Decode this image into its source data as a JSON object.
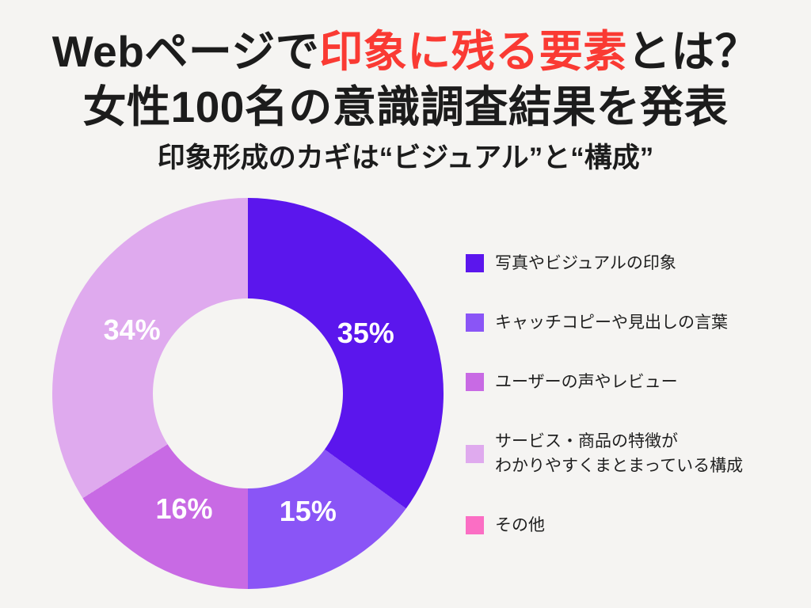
{
  "page": {
    "background": "#f5f4f2"
  },
  "header": {
    "title_line1_prefix": "Webページで",
    "title_line1_highlight": "印象に残る要素",
    "title_line1_suffix": "とは？",
    "title_line2": "女性100名の意識調査結果を発表",
    "subtitle": "印象形成のカギは“ビジュアル”と“構成”",
    "text_color": "#1c1c1c",
    "highlight_color": "#fa3a33"
  },
  "chart_data": {
    "type": "pie",
    "donut": true,
    "hole_ratio": 0.486,
    "hole_color": "#f5f4f2",
    "start_angle_deg": 0,
    "direction": "clockwise",
    "legend_position": "right",
    "unit": "%",
    "categories": [
      "写真やビジュアルの印象",
      "キャッチコピーや見出しの言葉",
      "ユーザーの声やレビュー",
      "サービス・商品の特徴がわかりやすくまとまっている構成",
      "その他"
    ],
    "values": [
      35,
      15,
      16,
      34,
      0
    ],
    "labels": [
      "35%",
      "15%",
      "16%",
      "34%",
      ""
    ],
    "colors": [
      "#5b16ed",
      "#8a55f6",
      "#c86ae4",
      "#dfaaee",
      "#fb6ec4"
    ],
    "label_color": "#ffffff"
  },
  "legend": {
    "items": [
      {
        "label": "写真やビジュアルの印象",
        "color": "#5b16ed"
      },
      {
        "label": "キャッチコピーや見出しの言葉",
        "color": "#8a55f6"
      },
      {
        "label": "ユーザーの声やレビュー",
        "color": "#c86ae4"
      },
      {
        "label": "サービス・商品の特徴が\nわかりやすくまとまっている構成",
        "color": "#dfaaee"
      },
      {
        "label": "その他",
        "color": "#fb6ec4"
      }
    ]
  }
}
